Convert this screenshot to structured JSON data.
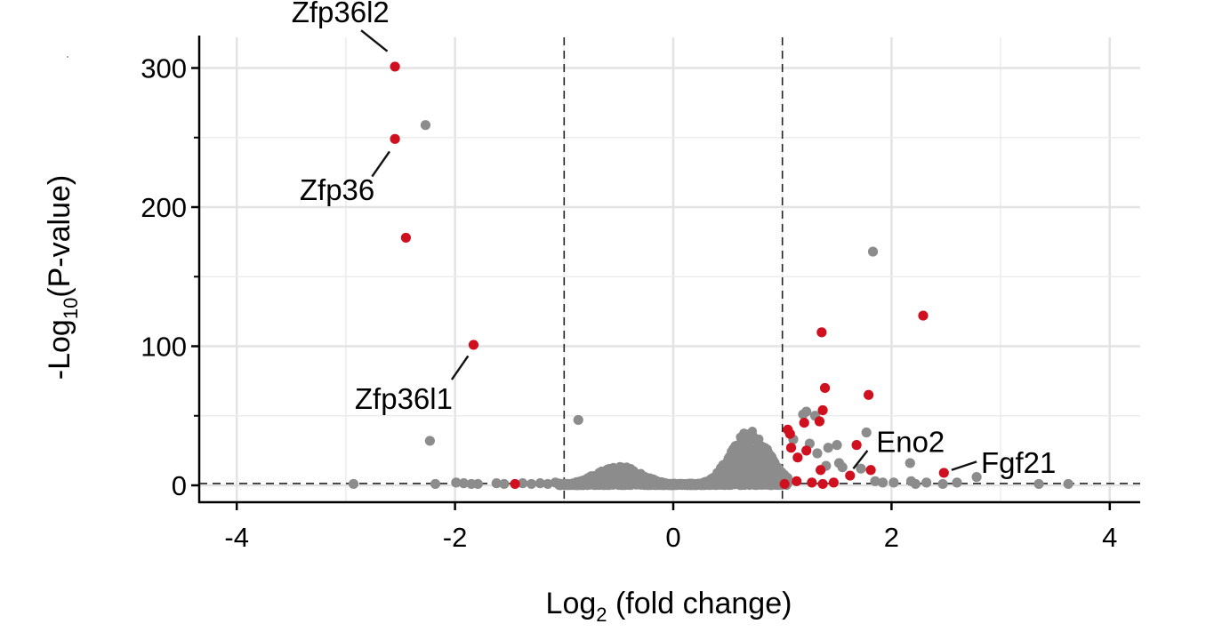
{
  "chart_data": {
    "type": "scatter",
    "title": "",
    "xlabel_main": "Log",
    "xlabel_sub": "2",
    "xlabel_rest": " (fold change)",
    "ylabel_main": "-Log",
    "ylabel_sub": "10",
    "ylabel_rest": "(P-value)",
    "xlim": [
      -4.3,
      4.3
    ],
    "ylim": [
      -12,
      315
    ],
    "x_ticks": [
      -4,
      -2,
      0,
      2,
      4
    ],
    "x_tick_labels": [
      "-4",
      "-2",
      "0",
      "2",
      "4"
    ],
    "y_ticks": [
      0,
      100,
      200,
      300
    ],
    "y_tick_labels": [
      "0",
      "100",
      "200",
      "300"
    ],
    "y_minor_ticks": [
      50,
      150,
      250
    ],
    "x_minor_grid": [
      -3,
      -1,
      1,
      3
    ],
    "grid": true,
    "thresholds": {
      "fold_change": [
        -1,
        1
      ],
      "p_value_line": 1.3
    },
    "colors": {
      "not_significant": "#8c8c8c",
      "significant": "#d0101e"
    },
    "series": [
      {
        "name": "not significant",
        "color": "#8c8c8c",
        "points": [
          [
            -2.27,
            259
          ],
          [
            1.83,
            168
          ],
          [
            -0.87,
            47
          ],
          [
            -2.23,
            32
          ],
          [
            -2.93,
            1
          ],
          [
            -2.18,
            1
          ],
          [
            -1.99,
            2
          ],
          [
            -1.92,
            1.5
          ],
          [
            -1.85,
            1
          ],
          [
            -1.79,
            1
          ],
          [
            -1.62,
            1.5
          ],
          [
            -1.55,
            1
          ],
          [
            -1.38,
            1.5
          ],
          [
            -1.3,
            1
          ],
          [
            -1.22,
            1.5
          ],
          [
            -1.15,
            1
          ],
          [
            -1.08,
            2
          ],
          [
            1.22,
            53
          ],
          [
            1.19,
            51
          ],
          [
            1.3,
            50
          ],
          [
            1.77,
            38
          ],
          [
            1.1,
            33
          ],
          [
            1.25,
            30
          ],
          [
            1.5,
            29
          ],
          [
            1.42,
            27
          ],
          [
            1.32,
            23
          ],
          [
            1.52,
            16
          ],
          [
            1.4,
            14
          ],
          [
            1.55,
            13
          ],
          [
            1.72,
            12
          ],
          [
            1.85,
            3
          ],
          [
            1.92,
            2
          ],
          [
            2.02,
            2
          ],
          [
            2.17,
            16
          ],
          [
            2.18,
            3
          ],
          [
            2.32,
            2
          ],
          [
            2.22,
            1
          ],
          [
            2.47,
            1
          ],
          [
            2.6,
            2
          ],
          [
            2.78,
            6
          ],
          [
            3.35,
            1
          ],
          [
            3.62,
            1
          ]
        ]
      },
      {
        "name": "significant",
        "color": "#d0101e",
        "points": [
          [
            -2.55,
            301
          ],
          [
            -2.55,
            249
          ],
          [
            -2.45,
            178
          ],
          [
            -1.83,
            101
          ],
          [
            -1.45,
            1
          ],
          [
            2.29,
            122
          ],
          [
            1.36,
            110
          ],
          [
            1.39,
            70
          ],
          [
            1.79,
            65
          ],
          [
            1.37,
            54
          ],
          [
            1.34,
            46
          ],
          [
            1.2,
            45
          ],
          [
            1.05,
            40
          ],
          [
            1.07,
            37
          ],
          [
            1.68,
            29
          ],
          [
            1.08,
            27
          ],
          [
            1.22,
            25
          ],
          [
            1.14,
            20
          ],
          [
            1.81,
            11
          ],
          [
            1.35,
            11
          ],
          [
            1.62,
            7
          ],
          [
            2.48,
            9
          ],
          [
            1.02,
            1
          ],
          [
            1.13,
            3
          ],
          [
            1.27,
            2
          ],
          [
            1.37,
            1
          ],
          [
            1.47,
            2
          ]
        ]
      }
    ],
    "cloud": {
      "color": "#8c8c8c",
      "x_range": [
        -1.05,
        1.05
      ],
      "peak_left": {
        "x": -0.5,
        "y": 14,
        "width": 0.3
      },
      "peak_right": {
        "x": 0.7,
        "y": 40,
        "width": 0.25
      }
    },
    "annotations": [
      {
        "text": "Zfp36l2",
        "point": [
          -2.55,
          301
        ],
        "label": [
          -3.05,
          340
        ],
        "anchor": "middle",
        "line_from": [
          -2.62,
          312
        ],
        "line_to": [
          -2.86,
          327
        ]
      },
      {
        "text": "Zfp36",
        "point": [
          -2.55,
          249
        ],
        "label": [
          -3.08,
          212
        ],
        "anchor": "middle",
        "line_from": [
          -2.6,
          240
        ],
        "line_to": [
          -2.76,
          222
        ]
      },
      {
        "text": "Zfp36l1",
        "point": [
          -1.83,
          101
        ],
        "label": [
          -2.47,
          62
        ],
        "anchor": "middle",
        "line_from": [
          -1.88,
          93
        ],
        "line_to": [
          -2.03,
          76
        ]
      },
      {
        "text": "Eno2",
        "point": [
          1.62,
          7
        ],
        "label": [
          1.86,
          31
        ],
        "anchor": "start",
        "line_from": [
          1.65,
          12
        ],
        "line_to": [
          1.78,
          25
        ]
      },
      {
        "text": "Fgf21",
        "point": [
          2.48,
          9
        ],
        "label": [
          2.82,
          16
        ],
        "anchor": "start",
        "line_from": [
          2.55,
          11
        ],
        "line_to": [
          2.78,
          17
        ]
      }
    ]
  }
}
